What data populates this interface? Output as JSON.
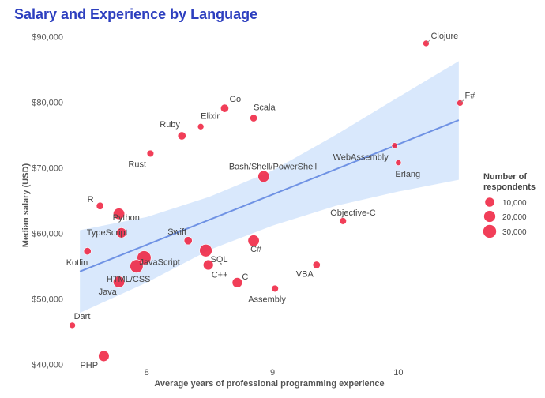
{
  "chart_data": {
    "type": "scatter",
    "title": "Salary and Experience by Language",
    "xlabel": "Average years of professional programming experience",
    "ylabel": "Median salary (USD)",
    "xlim": [
      7.4,
      10.6
    ],
    "ylim": [
      39000,
      92000
    ],
    "x_ticks": [
      {
        "v": 8,
        "label": "8"
      },
      {
        "v": 9,
        "label": "9"
      },
      {
        "v": 10,
        "label": "10"
      }
    ],
    "y_ticks": [
      {
        "v": 40000,
        "label": "$40,000"
      },
      {
        "v": 50000,
        "label": "$50,000"
      },
      {
        "v": 60000,
        "label": "$60,000"
      },
      {
        "v": 70000,
        "label": "$70,000"
      },
      {
        "v": 80000,
        "label": "$80,000"
      },
      {
        "v": 90000,
        "label": "$90,000"
      }
    ],
    "marker_color": "#ee1c3b",
    "trend_color": "#6f92e4",
    "band_color": "#cfe2fb",
    "trend_line": {
      "x": [
        7.47,
        10.48
      ],
      "y": [
        54200,
        77300
      ]
    },
    "confidence_band": {
      "upper": [
        [
          7.47,
          60500
        ],
        [
          8.0,
          62500
        ],
        [
          8.5,
          65600
        ],
        [
          9.0,
          69600
        ],
        [
          9.5,
          75000
        ],
        [
          10.0,
          80800
        ],
        [
          10.48,
          86300
        ]
      ],
      "lower": [
        [
          7.47,
          47900
        ],
        [
          8.0,
          52500
        ],
        [
          8.5,
          57500
        ],
        [
          9.0,
          61200
        ],
        [
          9.5,
          64200
        ],
        [
          10.0,
          66400
        ],
        [
          10.48,
          68200
        ]
      ]
    },
    "points": [
      {
        "name": "Clojure",
        "x": 10.22,
        "y": 89000,
        "respondents": 1000
      },
      {
        "name": "F#",
        "x": 10.49,
        "y": 79900,
        "respondents": 1000
      },
      {
        "name": "Go",
        "x": 8.62,
        "y": 79100,
        "respondents": 5000
      },
      {
        "name": "Scala",
        "x": 8.85,
        "y": 77600,
        "respondents": 3000
      },
      {
        "name": "Elixir",
        "x": 8.43,
        "y": 76300,
        "respondents": 1000
      },
      {
        "name": "Ruby",
        "x": 8.28,
        "y": 74900,
        "respondents": 5000
      },
      {
        "name": "Rust",
        "x": 8.03,
        "y": 72200,
        "respondents": 2000
      },
      {
        "name": "WebAssembly",
        "x": 9.97,
        "y": 73400,
        "respondents": 500
      },
      {
        "name": "Erlang",
        "x": 10.0,
        "y": 70800,
        "respondents": 500
      },
      {
        "name": "Bash/Shell/PowerShell",
        "x": 8.93,
        "y": 68700,
        "respondents": 18000
      },
      {
        "name": "R",
        "x": 7.63,
        "y": 64200,
        "respondents": 3000
      },
      {
        "name": "Python",
        "x": 7.78,
        "y": 63000,
        "respondents": 18000
      },
      {
        "name": "Objective-C",
        "x": 9.56,
        "y": 61900,
        "respondents": 2000
      },
      {
        "name": "Swift",
        "x": 8.33,
        "y": 58900,
        "respondents": 5000
      },
      {
        "name": "TypeScript",
        "x": 7.8,
        "y": 60100,
        "respondents": 12000
      },
      {
        "name": "C#",
        "x": 8.85,
        "y": 58900,
        "respondents": 18000
      },
      {
        "name": "JavaScript",
        "x": 7.98,
        "y": 56300,
        "respondents": 33000
      },
      {
        "name": "Kotlin",
        "x": 7.53,
        "y": 57300,
        "respondents": 3000
      },
      {
        "name": "SQL",
        "x": 8.47,
        "y": 57400,
        "respondents": 24000
      },
      {
        "name": "HTML/CSS",
        "x": 7.92,
        "y": 55000,
        "respondents": 28000
      },
      {
        "name": "C++",
        "x": 8.49,
        "y": 55200,
        "respondents": 12000
      },
      {
        "name": "VBA",
        "x": 9.35,
        "y": 55200,
        "respondents": 3000
      },
      {
        "name": "C",
        "x": 8.72,
        "y": 52500,
        "respondents": 12000
      },
      {
        "name": "Java",
        "x": 7.78,
        "y": 52600,
        "respondents": 18000
      },
      {
        "name": "Assembly",
        "x": 9.02,
        "y": 51600,
        "respondents": 2000
      },
      {
        "name": "Dart",
        "x": 7.41,
        "y": 46000,
        "respondents": 1000
      },
      {
        "name": "PHP",
        "x": 7.66,
        "y": 41300,
        "respondents": 15000
      }
    ],
    "legend": {
      "title_lines": [
        "Number of",
        "respondents"
      ],
      "placement": "right",
      "entries": [
        {
          "label": "10,000",
          "respondents": 10000
        },
        {
          "label": "20,000",
          "respondents": 20000
        },
        {
          "label": "30,000",
          "respondents": 30000
        }
      ]
    }
  }
}
